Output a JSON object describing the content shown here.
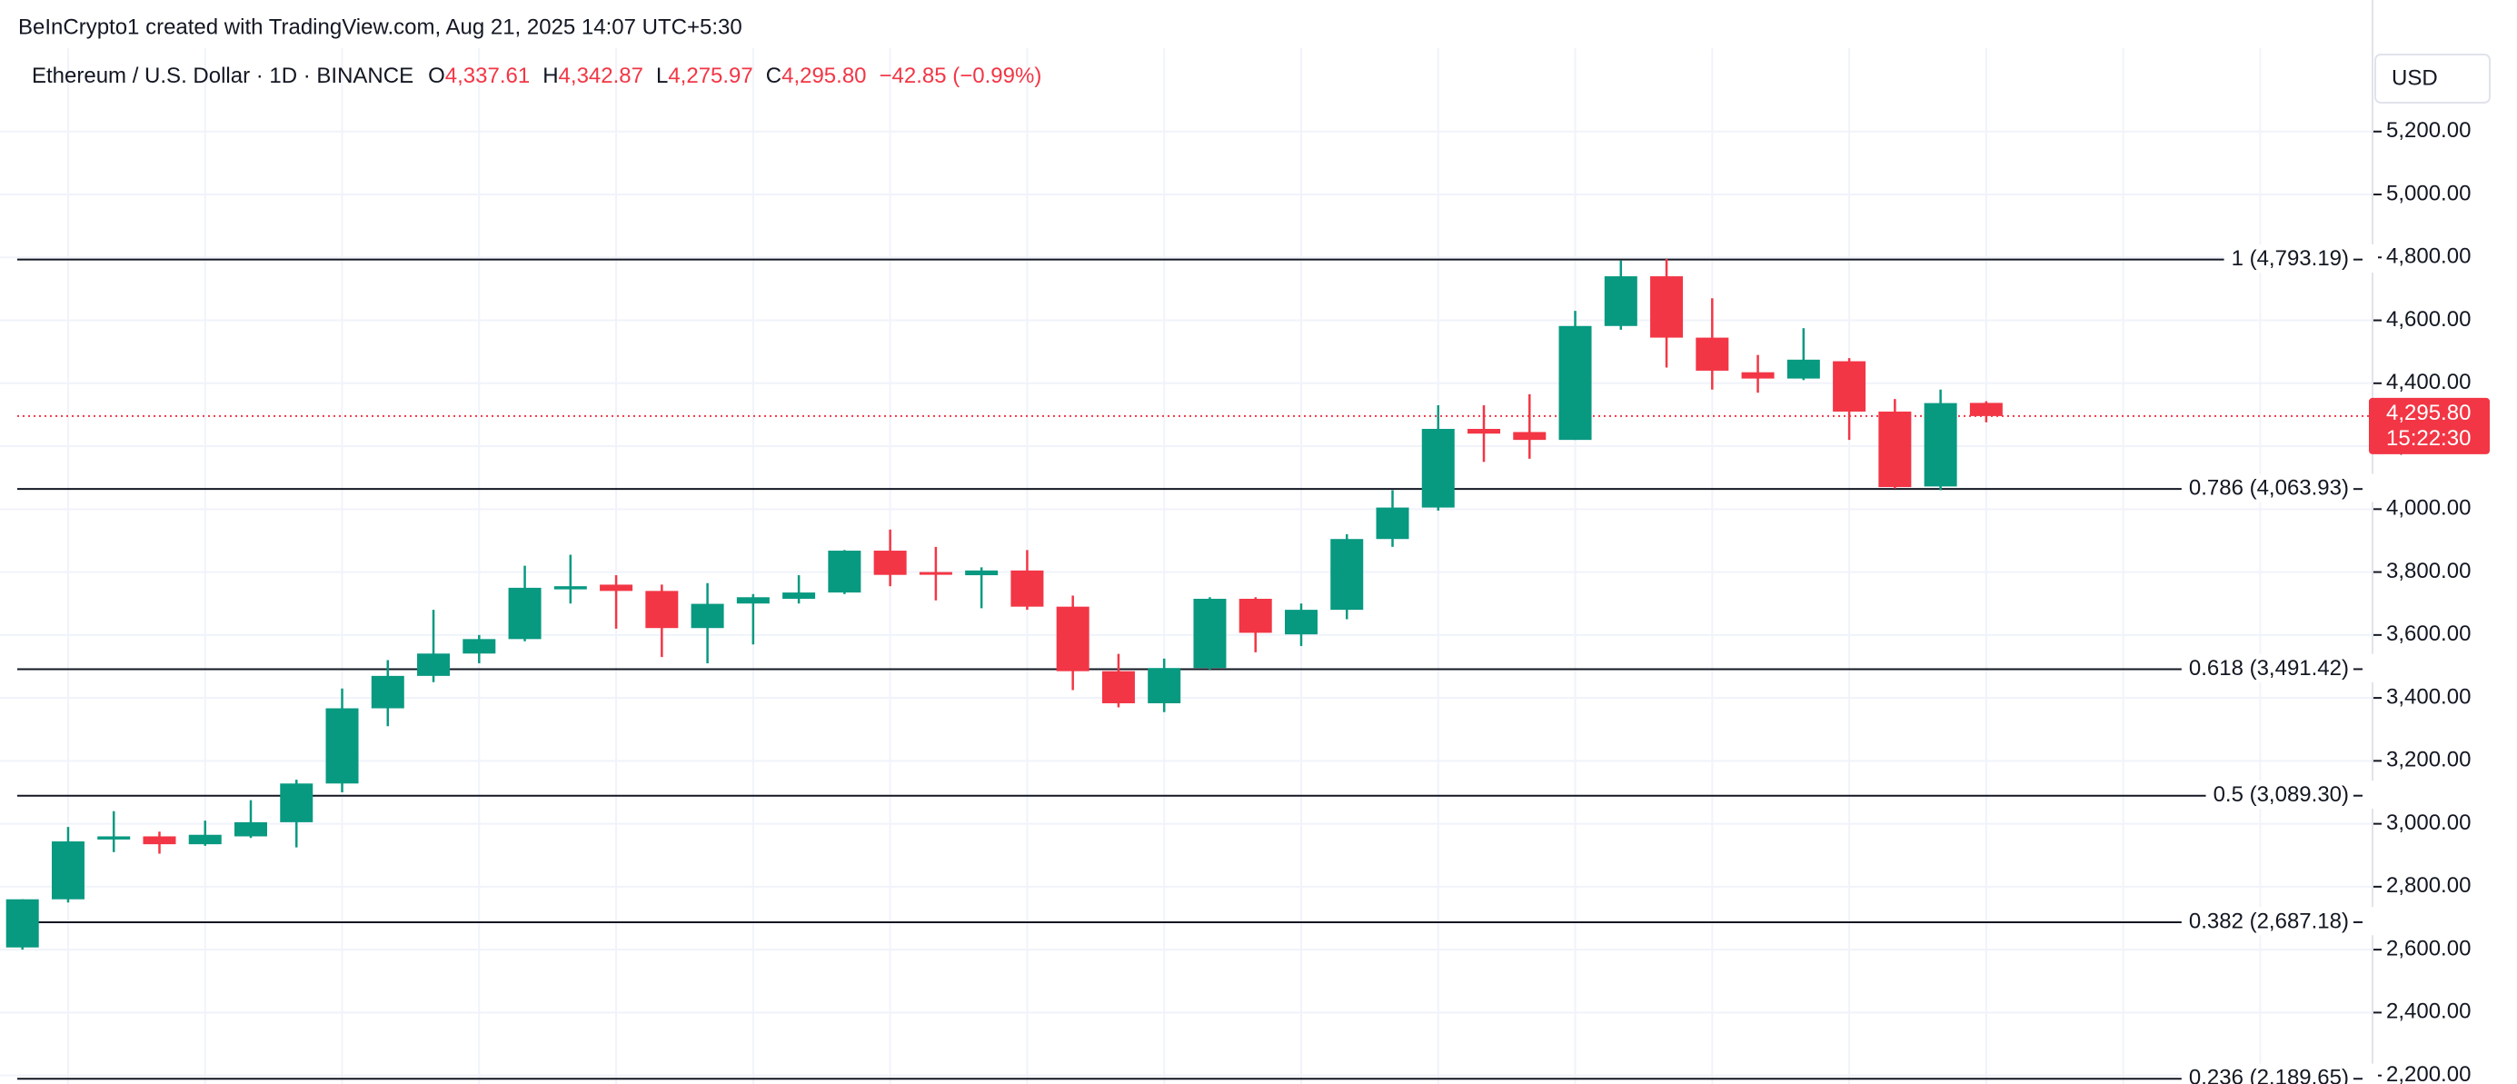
{
  "header": "BeInCrypto1 created with TradingView.com, Aug 21, 2025 14:07 UTC+5:30",
  "chart_data": {
    "type": "candlestick",
    "legend": {
      "title": "Ethereum / U.S. Dollar · 1D · BINANCE",
      "items": [
        {
          "key": "O",
          "value": "4,337.61"
        },
        {
          "key": "H",
          "value": "4,342.87"
        },
        {
          "key": "L",
          "value": "4,275.97"
        },
        {
          "key": "C",
          "value": "4,295.80"
        }
      ],
      "change": "−42.85 (−0.99%)"
    },
    "currency": "USD",
    "up_color": "#089981",
    "down_color": "#f23645",
    "open": [
      2607,
      2760,
      2950,
      2960,
      2935,
      2960,
      3005,
      3128,
      3367,
      3470,
      3541,
      3587,
      3745,
      3760,
      3740,
      3622,
      3700,
      3715,
      3735,
      3868,
      3800,
      3790,
      3805,
      3690,
      3485,
      3383,
      3495,
      3715,
      3602,
      3680,
      3905,
      4005,
      4255,
      4245,
      4220,
      4582,
      4740,
      4545,
      4435,
      4415,
      4470,
      4310,
      4072,
      4337.61
    ],
    "high": [
      2760,
      2990,
      3040,
      2975,
      3010,
      3075,
      3140,
      3430,
      3520,
      3680,
      3600,
      3820,
      3855,
      3790,
      3760,
      3765,
      3730,
      3790,
      3870,
      3935,
      3880,
      3815,
      3870,
      3725,
      3540,
      3525,
      3720,
      3720,
      3700,
      3920,
      4060,
      4330,
      4330,
      4365,
      4630,
      4790,
      4795,
      4670,
      4490,
      4575,
      4480,
      4350,
      4380,
      4342.87
    ],
    "low": [
      2600,
      2750,
      2910,
      2905,
      2930,
      2955,
      2925,
      3100,
      3310,
      3450,
      3510,
      3580,
      3700,
      3620,
      3530,
      3510,
      3570,
      3700,
      3730,
      3755,
      3710,
      3685,
      3680,
      3425,
      3370,
      3355,
      3490,
      3545,
      3565,
      3650,
      3880,
      3995,
      4150,
      4160,
      4220,
      4570,
      4450,
      4380,
      4370,
      4410,
      4220,
      4065,
      4060,
      4275.97
    ],
    "close": [
      2760,
      2944,
      2960,
      2935,
      2965,
      3005,
      3128,
      3367,
      3470,
      3541,
      3587,
      3750,
      3755,
      3740,
      3622,
      3699,
      3720,
      3735,
      3868,
      3791,
      3795,
      3805,
      3690,
      3485,
      3383,
      3495,
      3715,
      3607,
      3680,
      3905,
      4005,
      4255,
      4240,
      4220,
      4582,
      4740,
      4545,
      4440,
      4415,
      4475,
      4310,
      4070,
      4337,
      4295.8
    ],
    "ylim": [
      2173,
      5465
    ],
    "yticks": [
      {
        "value": 2200,
        "label": "2,200.00"
      },
      {
        "value": 2400,
        "label": "2,400.00"
      },
      {
        "value": 2600,
        "label": "2,600.00"
      },
      {
        "value": 2800,
        "label": "2,800.00"
      },
      {
        "value": 3000,
        "label": "3,000.00"
      },
      {
        "value": 3200,
        "label": "3,200.00"
      },
      {
        "value": 3400,
        "label": "3,400.00"
      },
      {
        "value": 3600,
        "label": "3,600.00"
      },
      {
        "value": 3800,
        "label": "3,800.00"
      },
      {
        "value": 4000,
        "label": "4,000.00"
      },
      {
        "value": 4200,
        "label": "4,200.00"
      },
      {
        "value": 4400,
        "label": "4,400.00"
      },
      {
        "value": 4600,
        "label": "4,600.00"
      },
      {
        "value": 4800,
        "label": "4,800.00"
      },
      {
        "value": 5000,
        "label": "5,000.00"
      },
      {
        "value": 5200,
        "label": "5,200.00"
      }
    ],
    "grid": true,
    "levels": [
      {
        "value": 4793.19,
        "label": "1 (4,793.19)"
      },
      {
        "value": 4063.93,
        "label": "0.786 (4,063.93)"
      },
      {
        "value": 3491.42,
        "label": "0.618 (3,491.42)"
      },
      {
        "value": 3089.3,
        "label": "0.5 (3,089.30)"
      },
      {
        "value": 2687.18,
        "label": "0.382 (2,687.18)"
      },
      {
        "value": 2189.65,
        "label": "0.236 (2,189.65)"
      }
    ],
    "last_price": {
      "value": 4295.8,
      "label": "4,295.80",
      "countdown": "15:22:30"
    }
  }
}
